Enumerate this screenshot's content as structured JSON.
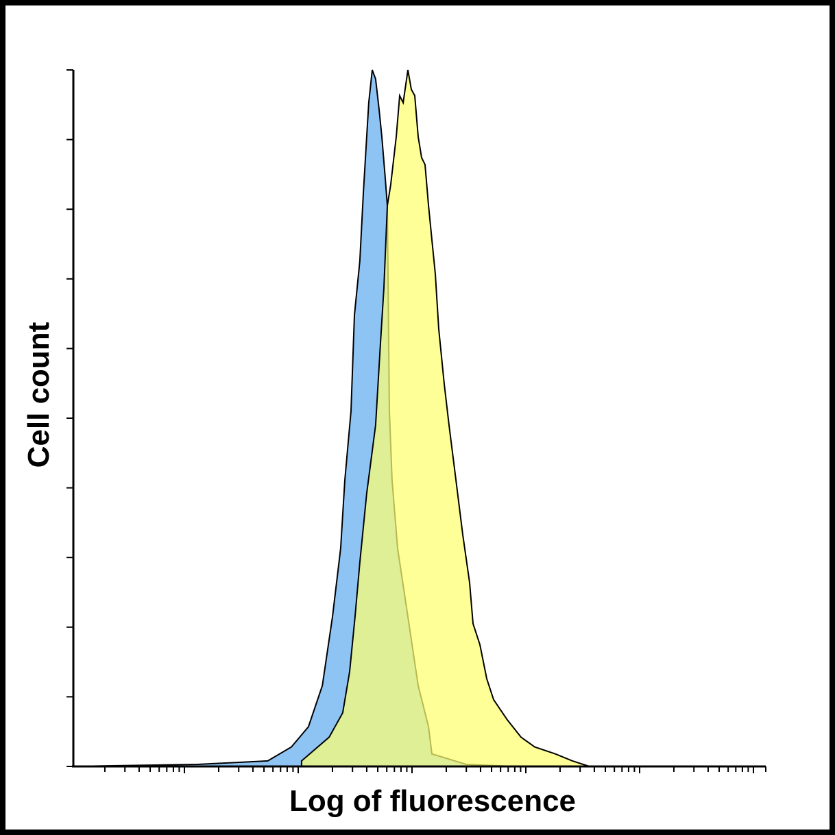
{
  "chart_data": {
    "type": "area",
    "title": "",
    "xlabel": "Log of fluorescence",
    "ylabel": "Cell count",
    "x_scale": "log",
    "xlim": [
      1,
      1000000
    ],
    "ylim": [
      0,
      100
    ],
    "grid": false,
    "legend": "none",
    "series": [
      {
        "color": "#8ec4f4",
        "points": [
          [
            1,
            9.6
          ],
          [
            1.05,
            0
          ],
          [
            13,
            0.3
          ],
          [
            54,
            0.8
          ],
          [
            87,
            2.8
          ],
          [
            123,
            5.7
          ],
          [
            163,
            11.6
          ],
          [
            200,
            21.5
          ],
          [
            236,
            31.3
          ],
          [
            257,
            41.1
          ],
          [
            291,
            51.0
          ],
          [
            312,
            64.8
          ],
          [
            348,
            72.6
          ],
          [
            374,
            82.5
          ],
          [
            400,
            90.4
          ],
          [
            417,
            95.3
          ],
          [
            447,
            100
          ],
          [
            479,
            98.7
          ],
          [
            514,
            94.3
          ],
          [
            543,
            90.4
          ],
          [
            582,
            84.4
          ],
          [
            607,
            80.5
          ],
          [
            615,
            70.7
          ],
          [
            624,
            60.8
          ],
          [
            633,
            51.0
          ],
          [
            668,
            41.1
          ],
          [
            747,
            31.3
          ],
          [
            920,
            21.5
          ],
          [
            1133,
            11.6
          ],
          [
            1396,
            5.7
          ],
          [
            1496,
            1.8
          ],
          [
            2992,
            0.3
          ],
          [
            7907,
            0
          ]
        ]
      },
      {
        "color": "#ffff70",
        "points": [
          [
            107,
            0.8
          ],
          [
            187,
            4.2
          ],
          [
            246,
            7.7
          ],
          [
            283,
            13.6
          ],
          [
            316,
            21.5
          ],
          [
            348,
            29.3
          ],
          [
            400,
            39.2
          ],
          [
            479,
            49.0
          ],
          [
            528,
            60.8
          ],
          [
            566,
            68.7
          ],
          [
            607,
            80.5
          ],
          [
            650,
            83.5
          ],
          [
            727,
            90.4
          ],
          [
            779,
            96.3
          ],
          [
            836,
            95.3
          ],
          [
            920,
            100
          ],
          [
            986,
            97.2
          ],
          [
            1057,
            96.3
          ],
          [
            1133,
            90.4
          ],
          [
            1214,
            87.4
          ],
          [
            1301,
            86.4
          ],
          [
            1396,
            80.5
          ],
          [
            1496,
            75.6
          ],
          [
            1603,
            70.7
          ],
          [
            1718,
            62.8
          ],
          [
            1919,
            54.9
          ],
          [
            2115,
            49.0
          ],
          [
            2432,
            41.1
          ],
          [
            2791,
            33.3
          ],
          [
            3206,
            26.4
          ],
          [
            3436,
            20.5
          ],
          [
            3946,
            17.5
          ],
          [
            4537,
            12.6
          ],
          [
            5212,
            9.6
          ],
          [
            6871,
            6.7
          ],
          [
            9075,
            4.2
          ],
          [
            11970,
            2.8
          ],
          [
            18160,
            1.8
          ],
          [
            25700,
            0.8
          ],
          [
            36300,
            0
          ]
        ]
      }
    ],
    "y_ticks": [
      0,
      10,
      20,
      30,
      40,
      50,
      60,
      70,
      80,
      90,
      100
    ]
  }
}
